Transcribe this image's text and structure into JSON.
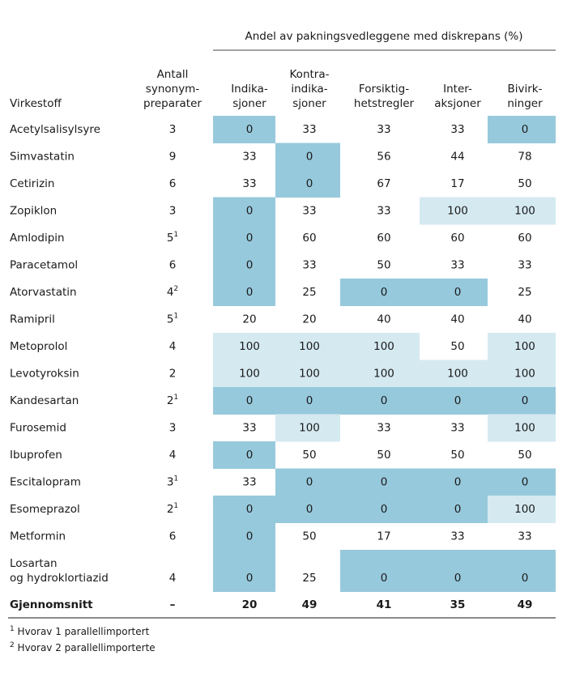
{
  "header": {
    "group_title": "Andel av pakningsvedleggene med diskrepans (%)",
    "name_column": "Virkestoff",
    "count_column": [
      "Antall",
      "synonym-",
      "preparater"
    ],
    "columns": [
      [
        "Indika-",
        "sjoner"
      ],
      [
        "Kontra-",
        "indika-",
        "sjoner"
      ],
      [
        "Forsiktig-",
        "hetstregler"
      ],
      [
        "Inter-",
        "aksjoner"
      ],
      [
        "Bivirk-",
        "ninger"
      ]
    ]
  },
  "table": {
    "rows": [
      {
        "name": [
          "Acetylsalisylsyre"
        ],
        "count": "3",
        "values": [
          0,
          33,
          33,
          33,
          0
        ]
      },
      {
        "name": [
          "Simvastatin"
        ],
        "count": "9",
        "values": [
          33,
          0,
          56,
          44,
          78
        ]
      },
      {
        "name": [
          "Cetirizin"
        ],
        "count": "6",
        "values": [
          33,
          0,
          67,
          17,
          50
        ]
      },
      {
        "name": [
          "Zopiklon"
        ],
        "count": "3",
        "values": [
          0,
          33,
          33,
          100,
          100
        ]
      },
      {
        "name": [
          "Amlodipin"
        ],
        "count": "5",
        "note": "1",
        "values": [
          0,
          60,
          60,
          60,
          60
        ]
      },
      {
        "name": [
          "Paracetamol"
        ],
        "count": "6",
        "values": [
          0,
          33,
          50,
          33,
          33
        ]
      },
      {
        "name": [
          "Atorvastatin"
        ],
        "count": "4",
        "note": "2",
        "values": [
          0,
          25,
          0,
          0,
          25
        ]
      },
      {
        "name": [
          "Ramipril"
        ],
        "count": "5",
        "note": "1",
        "values": [
          20,
          20,
          40,
          40,
          40
        ]
      },
      {
        "name": [
          "Metoprolol"
        ],
        "count": "4",
        "values": [
          100,
          100,
          100,
          50,
          100
        ]
      },
      {
        "name": [
          "Levotyroksin"
        ],
        "count": "2",
        "values": [
          100,
          100,
          100,
          100,
          100
        ]
      },
      {
        "name": [
          "Kandesartan"
        ],
        "count": "2",
        "note": "1",
        "values": [
          0,
          0,
          0,
          0,
          0
        ]
      },
      {
        "name": [
          "Furosemid"
        ],
        "count": "3",
        "values": [
          33,
          100,
          33,
          33,
          100
        ]
      },
      {
        "name": [
          "Ibuprofen"
        ],
        "count": "4",
        "values": [
          0,
          50,
          50,
          50,
          50
        ]
      },
      {
        "name": [
          "Escitalopram"
        ],
        "count": "3",
        "note": "1",
        "values": [
          33,
          0,
          0,
          0,
          0
        ]
      },
      {
        "name": [
          "Esomeprazol"
        ],
        "count": "2",
        "note": "1",
        "values": [
          0,
          0,
          0,
          0,
          100
        ]
      },
      {
        "name": [
          "Metformin"
        ],
        "count": "6",
        "values": [
          0,
          50,
          17,
          33,
          33
        ]
      },
      {
        "name": [
          "Losartan",
          "og hydroklortiazid"
        ],
        "count": "4",
        "values": [
          0,
          25,
          0,
          0,
          0
        ]
      }
    ],
    "average": {
      "name": "Gjennomsnitt",
      "count": "–",
      "values": [
        20,
        49,
        41,
        35,
        49
      ]
    }
  },
  "footnotes": [
    {
      "marker": "1",
      "text": " Hvorav 1 parallellimportert"
    },
    {
      "marker": "2",
      "text": " Hvorav 2 parallellimporterte"
    }
  ]
}
